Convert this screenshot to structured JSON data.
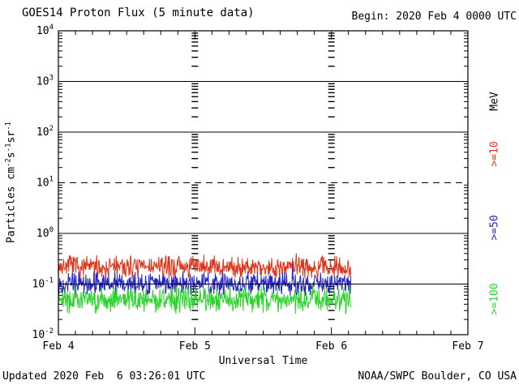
{
  "header": {
    "title": "GOES14 Proton Flux (5 minute data)",
    "begin_label": "Begin: 2020 Feb 4 0000 UTC"
  },
  "footer": {
    "updated": "Updated 2020 Feb  6 03:26:01 UTC",
    "source": "NOAA/SWPC Boulder, CO USA"
  },
  "right_axis": {
    "unit": "MeV"
  },
  "chart_data": {
    "type": "line",
    "title": "GOES14 Proton Flux (5 minute data)",
    "begin_label": "Begin: 2020 Feb 4 0000 UTC",
    "xlabel": "Universal Time",
    "x_tick_labels": [
      "Feb 4",
      "Feb 5",
      "Feb 6",
      "Feb 7"
    ],
    "x_range_days": 3,
    "x_minor_tick_hours": 3,
    "y_exp_min": -2,
    "y_exp_max": 4,
    "ylim": [
      0.01,
      10000
    ],
    "y_unit_parts": [
      {
        "text": "Particles cm",
        "sup": false
      },
      {
        "text": "-2",
        "sup": true
      },
      {
        "text": "s",
        "sup": false
      },
      {
        "text": "-1",
        "sup": true
      },
      {
        "text": "sr",
        "sup": false
      },
      {
        "text": "-1",
        "sup": true
      }
    ],
    "gridlines": [
      {
        "exp": 3,
        "style": "solid"
      },
      {
        "exp": 2,
        "style": "solid"
      },
      {
        "exp": 1,
        "style": "dashed"
      },
      {
        "exp": 0,
        "style": "solid"
      },
      {
        "exp": -1,
        "style": "solid"
      }
    ],
    "sample_minutes": 5,
    "data_end_days": 2.1424,
    "series": [
      {
        "label": ">=10",
        "unit": "MeV",
        "color": "#e23318",
        "approx_mean_flux": 0.22,
        "log10_mean": -0.66,
        "log10_jitter": 0.13,
        "spike_prob": 0.02,
        "spike_log10_max": 0.25,
        "seed": 7
      },
      {
        "label": ">=50",
        "unit": "MeV",
        "color": "#2424c8",
        "approx_mean_flux": 0.1,
        "log10_mean": -0.99,
        "log10_jitter": 0.13,
        "spike_prob": 0.02,
        "spike_log10_max": 0.25,
        "seed": 13
      },
      {
        "label": ">=100",
        "unit": "MeV",
        "color": "#2bd42b",
        "approx_mean_flux": 0.05,
        "log10_mean": -1.31,
        "log10_jitter": 0.15,
        "spike_prob": 0.02,
        "spike_log10_max": 0.25,
        "seed": 21
      }
    ],
    "legend_position": "right",
    "grid": true
  }
}
